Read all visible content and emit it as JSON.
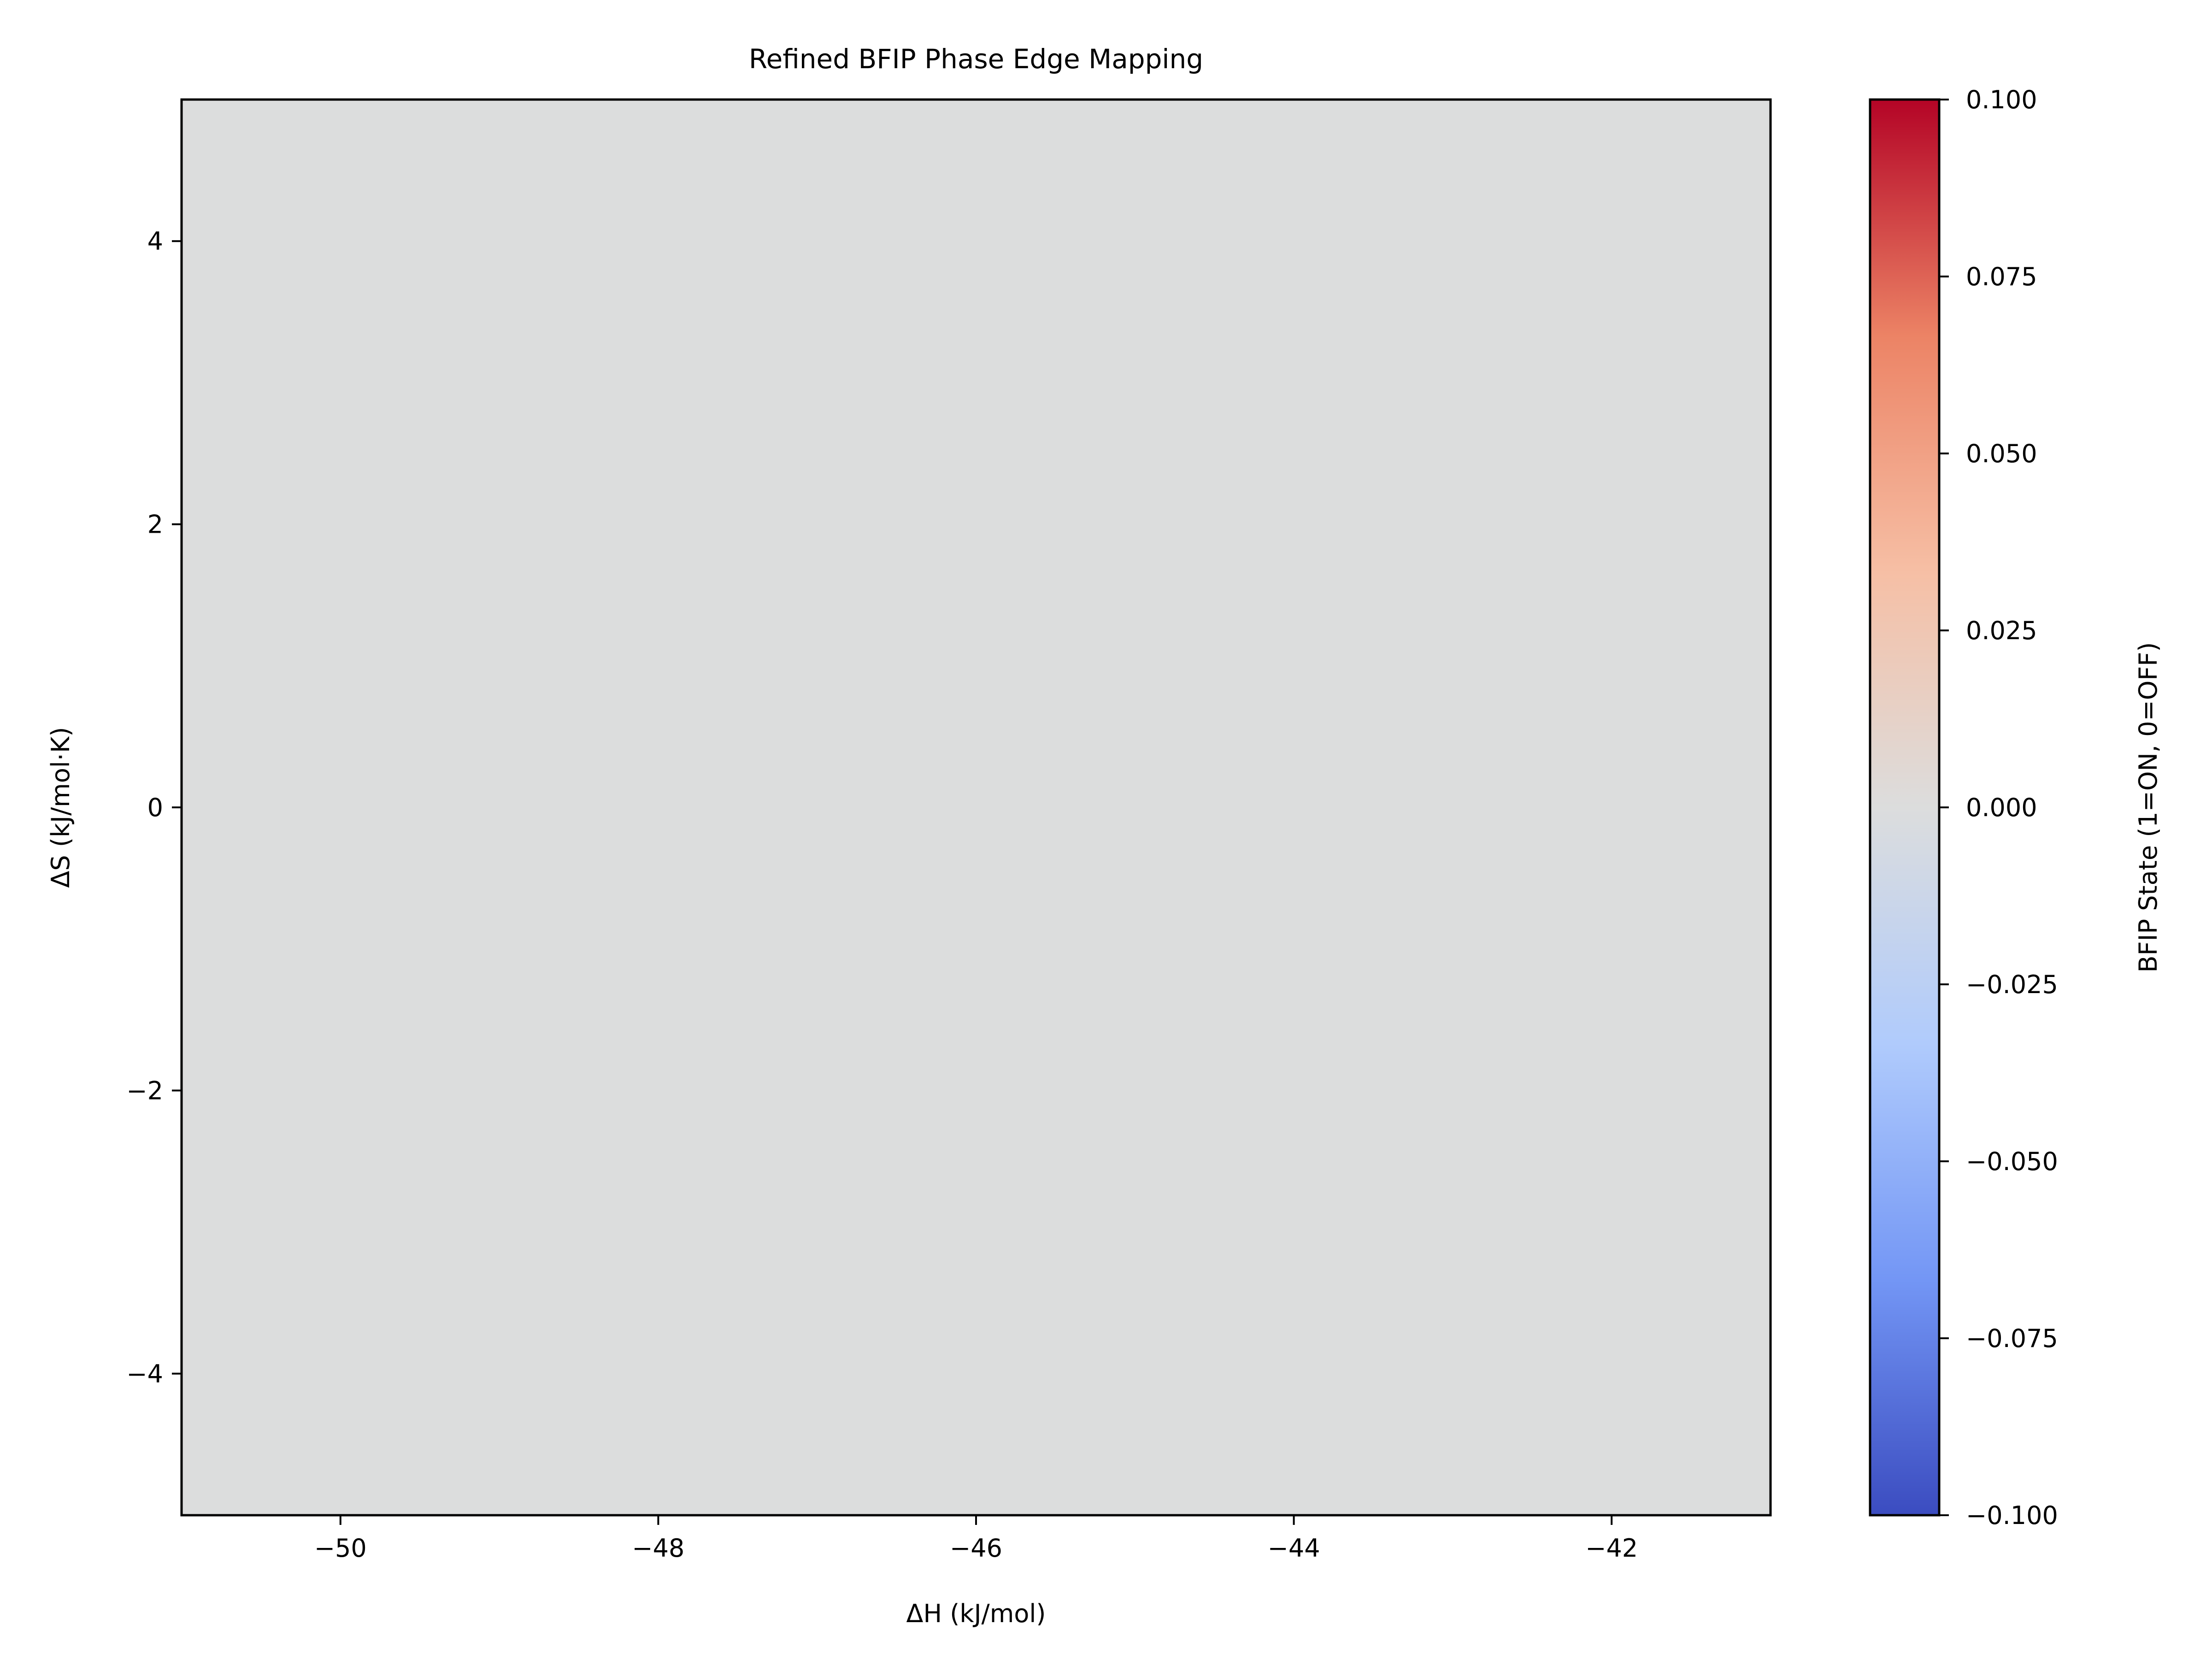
{
  "chart_data": {
    "type": "heatmap",
    "title": "Refined BFIP Phase Edge Mapping",
    "xlabel": "ΔH (kJ/mol)",
    "ylabel": "ΔS (kJ/mol·K)",
    "xlim": [
      -51.0,
      -41.0
    ],
    "ylim": [
      -5.0,
      5.0
    ],
    "xticks": [
      -50,
      -48,
      -46,
      -44,
      -42
    ],
    "xtick_labels": [
      "−50",
      "−48",
      "−46",
      "−44",
      "−42"
    ],
    "yticks": [
      -4,
      -2,
      0,
      2,
      4
    ],
    "ytick_labels": [
      "−4",
      "−2",
      "0",
      "2",
      "4"
    ],
    "grid": false,
    "field": {
      "value": 0.0,
      "description_of_cells": "uniform value over entire domain"
    },
    "colorbar": {
      "label": "BFIP State (1=ON, 0=OFF)",
      "colormap": "coolwarm",
      "range": [
        -0.1,
        0.1
      ],
      "ticks": [
        0.1,
        0.075,
        0.05,
        0.025,
        0.0,
        -0.025,
        -0.05,
        -0.075,
        -0.1
      ],
      "tick_labels": [
        "0.100",
        "0.075",
        "0.050",
        "0.025",
        "0.000",
        "−0.025",
        "−0.050",
        "−0.075",
        "−0.100"
      ],
      "colors": [
        "#3b4cc0",
        "#7396f5",
        "#b0cbfc",
        "#dcdddd",
        "#f6bfa5",
        "#ec8365",
        "#b40426"
      ]
    }
  }
}
